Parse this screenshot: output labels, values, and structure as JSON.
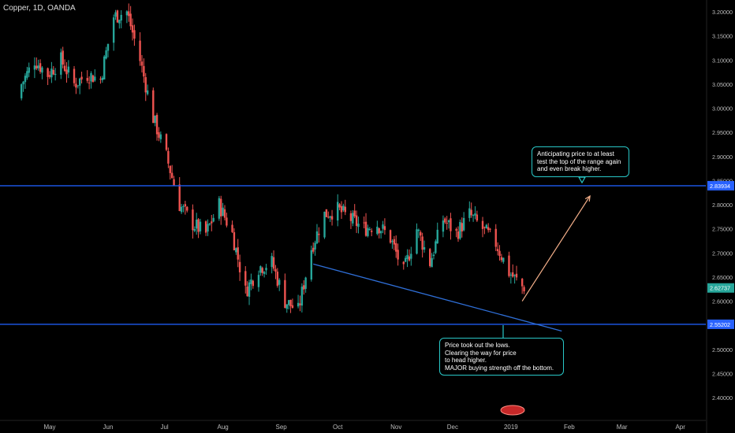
{
  "symbol_label": "Copper, 1D, OANDA",
  "colors": {
    "background": "#000000",
    "up": "#26a69a",
    "down": "#ef5350",
    "level_line": "#1e5bf0",
    "trend_line": "#2f6fd8",
    "projection_arrow": "#f5b08a",
    "callout_border": "#29c7c7",
    "price_tag": "#2962ff"
  },
  "annotations": {
    "top": "Anticipating price to at  least\ntest the top of the range again\nand even break higher.",
    "bottom": "Price took out the lows.\nClearing the way for price\nto head higher.\nMAJOR buying strength off the bottom."
  },
  "chart_data": {
    "type": "candlestick",
    "x_ticks": [
      "May",
      "Jun",
      "Jul",
      "Aug",
      "Sep",
      "Oct",
      "Nov",
      "Dec",
      "2019",
      "Feb",
      "Mar",
      "Apr"
    ],
    "y_ticks": [
      "3.20000",
      "3.15000",
      "3.10000",
      "3.05000",
      "3.00000",
      "2.95000",
      "2.90000",
      "2.85000",
      "2.80000",
      "2.75000",
      "2.70000",
      "2.65000",
      "2.60000",
      "2.55000",
      "2.50000",
      "2.45000",
      "2.40000"
    ],
    "ylim": [
      2.37,
      3.21
    ],
    "horizontal_levels": [
      2.83934,
      2.55202
    ],
    "price_labels": [
      {
        "label": "2.83934",
        "value": 2.83934
      },
      {
        "label": "2.62737",
        "value": 2.62737
      },
      {
        "label": "2.55202",
        "value": 2.55202
      }
    ],
    "trend_line": {
      "from": [
        "2018-09-18",
        2.677
      ],
      "to": [
        "2019-01-28",
        2.538
      ]
    },
    "projection_arrow": {
      "from": [
        "2019-01-07",
        2.6
      ],
      "to": [
        "2019-02-12",
        2.818
      ]
    },
    "series": [
      {
        "name": "close",
        "points": [
          [
            "2018-04-16",
            3.05
          ],
          [
            "2018-04-23",
            3.1
          ],
          [
            "2018-04-30",
            3.07
          ],
          [
            "2018-05-07",
            3.1
          ],
          [
            "2018-05-14",
            3.05
          ],
          [
            "2018-05-21",
            3.07
          ],
          [
            "2018-05-28",
            3.06
          ],
          [
            "2018-06-04",
            3.19
          ],
          [
            "2018-06-11",
            3.2
          ],
          [
            "2018-06-18",
            3.1
          ],
          [
            "2018-06-25",
            2.98
          ],
          [
            "2018-07-02",
            2.9
          ],
          [
            "2018-07-09",
            2.8
          ],
          [
            "2018-07-16",
            2.76
          ],
          [
            "2018-07-23",
            2.74
          ],
          [
            "2018-07-30",
            2.8
          ],
          [
            "2018-08-06",
            2.74
          ],
          [
            "2018-08-13",
            2.62
          ],
          [
            "2018-08-20",
            2.67
          ],
          [
            "2018-08-27",
            2.68
          ],
          [
            "2018-09-03",
            2.6
          ],
          [
            "2018-09-10",
            2.58
          ],
          [
            "2018-09-17",
            2.71
          ],
          [
            "2018-09-24",
            2.78
          ],
          [
            "2018-10-01",
            2.79
          ],
          [
            "2018-10-08",
            2.77
          ],
          [
            "2018-10-15",
            2.75
          ],
          [
            "2018-10-22",
            2.76
          ],
          [
            "2018-10-29",
            2.73
          ],
          [
            "2018-11-05",
            2.66
          ],
          [
            "2018-11-12",
            2.75
          ],
          [
            "2018-11-19",
            2.68
          ],
          [
            "2018-11-26",
            2.77
          ],
          [
            "2018-12-03",
            2.74
          ],
          [
            "2018-12-10",
            2.78
          ],
          [
            "2018-12-17",
            2.75
          ],
          [
            "2018-12-24",
            2.72
          ],
          [
            "2018-12-31",
            2.66
          ],
          [
            "2019-01-07",
            2.63
          ]
        ]
      }
    ]
  }
}
